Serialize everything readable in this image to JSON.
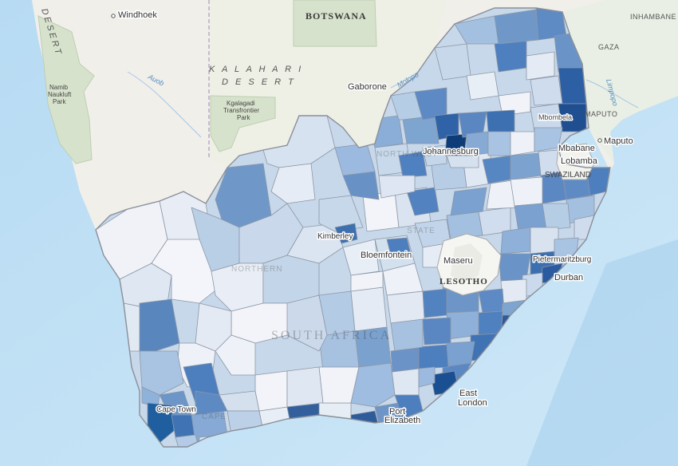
{
  "map": {
    "labels": {
      "windhoek": "Windhoek",
      "botswana": "BOTSWANA",
      "namib_desert": "DESERT",
      "namib_park": [
        "Namib",
        "Naukluft",
        "Park"
      ],
      "kalahari_1": "K A L A H A R I",
      "kalahari_2": "D E S E R T",
      "kgalagadi": [
        "Kgalagadi",
        "Transfrontier",
        "Park"
      ],
      "gaborone": "Gaborone",
      "inhambane": "INHAMBANE",
      "gaza": "GAZA",
      "maputo_prov": "MAPUTO",
      "maputo": "Maputo",
      "mbabane": "Mbabane",
      "lobamba": "Lobamba",
      "swaziland": "SWAZILAND",
      "johannesburg": "Johannesburg",
      "north_west": "NORTH WEST",
      "kimberley": "Kimberley",
      "bloemfontein": "Bloemfontein",
      "free_state": "STATE",
      "maseru": "Maseru",
      "lesotho": "LESOTHO",
      "pietermaritzburg": "Pietermaritzburg",
      "durban": "Durban",
      "south_africa": "SOUTH AFRICA",
      "northern_cape": "NORTHERN",
      "western_cape": "CAPE",
      "east_london": [
        "East",
        "London"
      ],
      "port_elizabeth": [
        "Port",
        "Elizabeth"
      ],
      "cape_town": "Cape Town",
      "river_auob": "Auob",
      "river_molopo": "Molopo",
      "river_limpopo": "Limpopo",
      "mbombela": "Mbombela"
    }
  }
}
